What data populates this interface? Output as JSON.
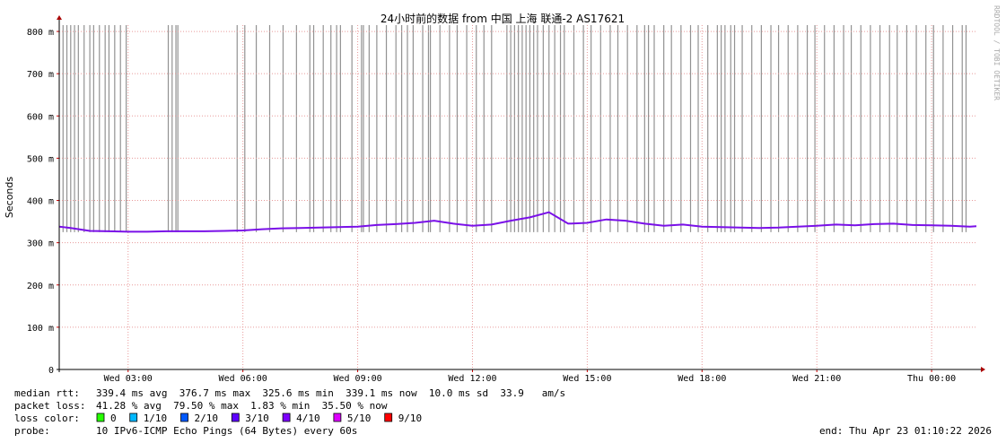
{
  "chart_data": {
    "type": "line",
    "title": "24小时前的数据 from 中国 上海 联通-2 AS17621",
    "y_label": "Seconds",
    "watermark": "RRDTOOL / TOBI OETIKER",
    "xlim": [
      1.2,
      25.17
    ],
    "xticks": [
      {
        "value": 3,
        "label": "Wed 03:00"
      },
      {
        "value": 6,
        "label": "Wed 06:00"
      },
      {
        "value": 9,
        "label": "Wed 09:00"
      },
      {
        "value": 12,
        "label": "Wed 12:00"
      },
      {
        "value": 15,
        "label": "Wed 15:00"
      },
      {
        "value": 18,
        "label": "Wed 18:00"
      },
      {
        "value": 21,
        "label": "Wed 21:00"
      },
      {
        "value": 24,
        "label": "Thu 00:00"
      }
    ],
    "ylim": [
      0,
      0.815
    ],
    "yticks": [
      {
        "value": 0,
        "label": "0"
      },
      {
        "value": 0.1,
        "label": "100 m"
      },
      {
        "value": 0.2,
        "label": "200 m"
      },
      {
        "value": 0.3,
        "label": "300 m"
      },
      {
        "value": 0.4,
        "label": "400 m"
      },
      {
        "value": 0.5,
        "label": "500 m"
      },
      {
        "value": 0.6,
        "label": "600 m"
      },
      {
        "value": 0.7,
        "label": "700 m"
      },
      {
        "value": 0.8,
        "label": "800 m"
      }
    ],
    "grid": true,
    "smoke": {
      "color": "#777777",
      "range": [
        0.325,
        0.815
      ],
      "x": [
        1.3,
        1.4,
        1.5,
        1.6,
        1.7,
        1.85,
        2.0,
        2.1,
        2.25,
        2.4,
        2.5,
        2.65,
        2.8,
        2.95,
        4.05,
        4.15,
        4.25,
        4.3,
        5.85,
        6.05,
        6.35,
        6.7,
        7.05,
        7.4,
        7.75,
        7.85,
        8.1,
        8.3,
        8.45,
        8.55,
        8.85,
        9.1,
        9.15,
        9.3,
        9.5,
        9.75,
        10.0,
        10.15,
        10.3,
        10.45,
        10.7,
        10.85,
        10.9,
        11.15,
        11.4,
        11.6,
        11.85,
        12.1,
        12.3,
        12.5,
        12.9,
        13.0,
        13.1,
        13.2,
        13.3,
        13.4,
        13.5,
        13.6,
        13.7,
        13.85,
        14.0,
        14.15,
        14.3,
        14.4,
        14.65,
        14.9,
        15.1,
        15.35,
        15.6,
        15.8,
        16.05,
        16.3,
        16.5,
        16.6,
        16.75,
        17.0,
        17.2,
        17.45,
        17.7,
        17.9,
        18.15,
        18.4,
        18.5,
        18.6,
        18.75,
        18.85,
        19.05,
        19.3,
        19.55,
        19.8,
        20.0,
        20.25,
        20.5,
        20.75,
        20.95,
        21.2,
        21.45,
        21.7,
        21.9,
        22.15,
        22.4,
        22.65,
        22.9,
        23.1,
        23.35,
        23.6,
        23.85,
        24.05,
        24.3,
        24.55,
        24.8,
        24.9
      ]
    },
    "median": {
      "color": "#7a10e8",
      "x": [
        1.2,
        1.5,
        2,
        2.5,
        3,
        3.5,
        4,
        4.5,
        5,
        5.5,
        6,
        6.5,
        7,
        7.5,
        8,
        8.5,
        9,
        9.5,
        10,
        10.5,
        11,
        11.5,
        12,
        12.5,
        13,
        13.5,
        14,
        14.5,
        15,
        15.5,
        16,
        16.5,
        17,
        17.5,
        18,
        18.5,
        19,
        19.5,
        20,
        20.5,
        21,
        21.5,
        22,
        22.5,
        23,
        23.5,
        24,
        24.5,
        25,
        25.17
      ],
      "values": [
        0.338,
        0.335,
        0.328,
        0.327,
        0.326,
        0.326,
        0.327,
        0.327,
        0.327,
        0.328,
        0.329,
        0.332,
        0.334,
        0.335,
        0.336,
        0.337,
        0.338,
        0.342,
        0.344,
        0.347,
        0.352,
        0.345,
        0.34,
        0.343,
        0.352,
        0.36,
        0.372,
        0.345,
        0.347,
        0.355,
        0.352,
        0.345,
        0.34,
        0.343,
        0.338,
        0.337,
        0.336,
        0.335,
        0.336,
        0.338,
        0.34,
        0.343,
        0.341,
        0.344,
        0.345,
        0.342,
        0.341,
        0.34,
        0.338,
        0.339
      ]
    },
    "stats": [
      {
        "label": "median rtt:",
        "text": "339.4 ms avg  376.7 ms max  325.6 ms min  339.1 ms now  10.0 ms sd  33.9   am/s"
      },
      {
        "label": "packet loss:",
        "text": "41.28 % avg  79.50 % max  1.83 % min  35.50 % now"
      }
    ],
    "loss_label": "loss color:",
    "loss_colors": [
      {
        "color": "#26ff00",
        "label": "0"
      },
      {
        "color": "#00b8ff",
        "label": "1/10"
      },
      {
        "color": "#0059ff",
        "label": "2/10"
      },
      {
        "color": "#5e00ff",
        "label": "3/10"
      },
      {
        "color": "#7e00ff",
        "label": "4/10"
      },
      {
        "color": "#dd00ff",
        "label": "5/10"
      },
      {
        "color": "#ff0000",
        "label": "9/10"
      }
    ],
    "probe_label": "probe:",
    "probe": "10 IPv6-ICMP Echo Pings (64 Bytes) every 60s",
    "end": "end: Thu Apr 23 01:10:22 2026"
  }
}
